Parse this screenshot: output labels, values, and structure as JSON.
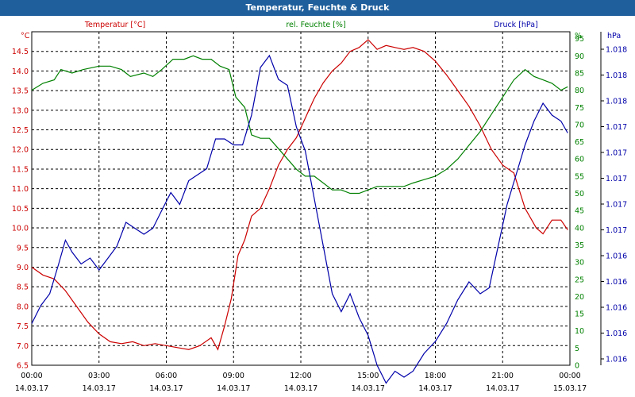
{
  "window": {
    "title": "Temperatur, Feuchte & Druck"
  },
  "chart_data": {
    "type": "line",
    "title": "Temperatur, Feuchte & Druck",
    "grid": true,
    "x_ticks": [
      {
        "time": "00:00",
        "date": "14.03.17"
      },
      {
        "time": "03:00",
        "date": "14.03.17"
      },
      {
        "time": "06:00",
        "date": "14.03.17"
      },
      {
        "time": "09:00",
        "date": "14.03.17"
      },
      {
        "time": "12:00",
        "date": "14.03.17"
      },
      {
        "time": "15:00",
        "date": "14.03.17"
      },
      {
        "time": "18:00",
        "date": "14.03.17"
      },
      {
        "time": "21:00",
        "date": "14.03.17"
      },
      {
        "time": "00:00",
        "date": "15.03.17"
      }
    ],
    "x_range_hours": [
      0,
      24
    ],
    "axes": {
      "temperature": {
        "label": "Temperatur [°C]",
        "unit": "°C",
        "color": "#cc0000",
        "range": [
          6.5,
          15.0
        ],
        "ticks": [
          "14.5",
          "14.0",
          "13.5",
          "13.0",
          "12.5",
          "12.0",
          "11.5",
          "11.0",
          "10.5",
          "10.0",
          "9.5",
          "9.0",
          "8.5",
          "8.0",
          "7.5",
          "7.0",
          "6.5"
        ]
      },
      "humidity": {
        "label": "rel. Feuchte [%]",
        "unit": "%",
        "color": "#008000",
        "range": [
          0,
          97
        ],
        "ticks": [
          "95",
          "90",
          "85",
          "80",
          "75",
          "70",
          "65",
          "60",
          "55",
          "50",
          "45",
          "40",
          "35",
          "30",
          "25",
          "20",
          "15",
          "10",
          "5",
          "0"
        ]
      },
      "pressure": {
        "label": "Druck [hPa]",
        "unit": "hPa",
        "color": "#0000aa",
        "range": [
          1015.6,
          1018.4
        ],
        "ticks": [
          "1.018",
          "1.018",
          "1.018",
          "1.017",
          "1.017",
          "1.017",
          "1.017",
          "1.017",
          "1.016",
          "1.016",
          "1.016",
          "1.016",
          "1.016"
        ]
      }
    },
    "series": [
      {
        "name": "Temperatur [°C]",
        "axis": "temperature",
        "color": "#cc0000",
        "points": [
          [
            0,
            9.0
          ],
          [
            0.5,
            8.8
          ],
          [
            1,
            8.7
          ],
          [
            1.5,
            8.4
          ],
          [
            2,
            8.0
          ],
          [
            2.5,
            7.6
          ],
          [
            3,
            7.3
          ],
          [
            3.5,
            7.1
          ],
          [
            4,
            7.05
          ],
          [
            4.5,
            7.1
          ],
          [
            5,
            7.0
          ],
          [
            5.5,
            7.05
          ],
          [
            6,
            7.0
          ],
          [
            6.5,
            6.95
          ],
          [
            7,
            6.9
          ],
          [
            7.5,
            7.0
          ],
          [
            8,
            7.2
          ],
          [
            8.3,
            6.9
          ],
          [
            8.6,
            7.5
          ],
          [
            8.9,
            8.2
          ],
          [
            9.2,
            9.3
          ],
          [
            9.5,
            9.7
          ],
          [
            9.8,
            10.3
          ],
          [
            10.2,
            10.5
          ],
          [
            10.6,
            11.0
          ],
          [
            11,
            11.6
          ],
          [
            11.4,
            12.0
          ],
          [
            11.8,
            12.3
          ],
          [
            12.2,
            12.8
          ],
          [
            12.6,
            13.3
          ],
          [
            13,
            13.7
          ],
          [
            13.4,
            14.0
          ],
          [
            13.8,
            14.2
          ],
          [
            14.2,
            14.5
          ],
          [
            14.6,
            14.6
          ],
          [
            15,
            14.8
          ],
          [
            15.4,
            14.55
          ],
          [
            15.8,
            14.65
          ],
          [
            16.2,
            14.6
          ],
          [
            16.6,
            14.55
          ],
          [
            17,
            14.6
          ],
          [
            17.5,
            14.5
          ],
          [
            18,
            14.25
          ],
          [
            18.5,
            13.9
          ],
          [
            19,
            13.5
          ],
          [
            19.5,
            13.1
          ],
          [
            20,
            12.6
          ],
          [
            20.5,
            12.0
          ],
          [
            21,
            11.6
          ],
          [
            21.5,
            11.4
          ],
          [
            22,
            10.5
          ],
          [
            22.5,
            10.0
          ],
          [
            22.8,
            9.85
          ],
          [
            23.2,
            10.2
          ],
          [
            23.6,
            10.2
          ],
          [
            23.9,
            9.95
          ]
        ]
      },
      {
        "name": "rel. Feuchte [%]",
        "axis": "humidity",
        "color": "#008000",
        "points": [
          [
            0,
            80
          ],
          [
            0.5,
            82
          ],
          [
            1,
            83
          ],
          [
            1.3,
            86
          ],
          [
            1.8,
            85
          ],
          [
            2.3,
            86
          ],
          [
            3,
            87
          ],
          [
            3.5,
            87
          ],
          [
            4,
            86
          ],
          [
            4.4,
            84
          ],
          [
            5,
            85
          ],
          [
            5.4,
            84
          ],
          [
            5.8,
            86
          ],
          [
            6.3,
            89
          ],
          [
            6.8,
            89
          ],
          [
            7.2,
            90
          ],
          [
            7.6,
            89
          ],
          [
            8,
            89
          ],
          [
            8.4,
            87
          ],
          [
            8.8,
            86
          ],
          [
            9.1,
            78
          ],
          [
            9.5,
            75
          ],
          [
            9.8,
            67
          ],
          [
            10.2,
            66
          ],
          [
            10.6,
            66
          ],
          [
            11,
            63
          ],
          [
            11.4,
            60
          ],
          [
            11.8,
            57
          ],
          [
            12.2,
            55
          ],
          [
            12.6,
            55
          ],
          [
            13,
            53
          ],
          [
            13.4,
            51
          ],
          [
            13.8,
            51
          ],
          [
            14.2,
            50
          ],
          [
            14.6,
            50
          ],
          [
            15,
            51
          ],
          [
            15.4,
            52
          ],
          [
            16,
            52
          ],
          [
            16.6,
            52
          ],
          [
            17,
            53
          ],
          [
            17.5,
            54
          ],
          [
            18,
            55
          ],
          [
            18.5,
            57
          ],
          [
            19,
            60
          ],
          [
            19.5,
            64
          ],
          [
            20,
            68
          ],
          [
            20.5,
            73
          ],
          [
            21,
            78
          ],
          [
            21.5,
            83
          ],
          [
            22,
            86
          ],
          [
            22.4,
            84
          ],
          [
            22.8,
            83
          ],
          [
            23.2,
            82
          ],
          [
            23.6,
            80
          ],
          [
            23.9,
            81
          ]
        ]
      },
      {
        "name": "Druck [hPa]",
        "axis": "pressure",
        "color": "#0000aa",
        "points": [
          [
            0,
            1015.95
          ],
          [
            0.4,
            1016.1
          ],
          [
            0.8,
            1016.2
          ],
          [
            1.2,
            1016.45
          ],
          [
            1.5,
            1016.65
          ],
          [
            1.8,
            1016.55
          ],
          [
            2.2,
            1016.45
          ],
          [
            2.6,
            1016.5
          ],
          [
            3,
            1016.4
          ],
          [
            3.4,
            1016.5
          ],
          [
            3.8,
            1016.6
          ],
          [
            4.2,
            1016.8
          ],
          [
            4.6,
            1016.75
          ],
          [
            5,
            1016.7
          ],
          [
            5.4,
            1016.75
          ],
          [
            5.8,
            1016.9
          ],
          [
            6.2,
            1017.05
          ],
          [
            6.6,
            1016.95
          ],
          [
            7,
            1017.15
          ],
          [
            7.4,
            1017.2
          ],
          [
            7.8,
            1017.25
          ],
          [
            8.2,
            1017.5
          ],
          [
            8.6,
            1017.5
          ],
          [
            9,
            1017.45
          ],
          [
            9.4,
            1017.45
          ],
          [
            9.8,
            1017.7
          ],
          [
            10.2,
            1018.1
          ],
          [
            10.6,
            1018.2
          ],
          [
            11,
            1018.0
          ],
          [
            11.4,
            1017.95
          ],
          [
            11.8,
            1017.6
          ],
          [
            12.2,
            1017.4
          ],
          [
            12.6,
            1017.0
          ],
          [
            13,
            1016.6
          ],
          [
            13.4,
            1016.2
          ],
          [
            13.8,
            1016.05
          ],
          [
            14.2,
            1016.2
          ],
          [
            14.6,
            1016.0
          ],
          [
            15,
            1015.85
          ],
          [
            15.4,
            1015.6
          ],
          [
            15.8,
            1015.45
          ],
          [
            16.2,
            1015.55
          ],
          [
            16.6,
            1015.5
          ],
          [
            17,
            1015.55
          ],
          [
            17.5,
            1015.7
          ],
          [
            18,
            1015.8
          ],
          [
            18.5,
            1015.95
          ],
          [
            19,
            1016.15
          ],
          [
            19.5,
            1016.3
          ],
          [
            20,
            1016.2
          ],
          [
            20.4,
            1016.25
          ],
          [
            20.8,
            1016.6
          ],
          [
            21.2,
            1016.95
          ],
          [
            21.6,
            1017.2
          ],
          [
            22,
            1017.45
          ],
          [
            22.4,
            1017.65
          ],
          [
            22.8,
            1017.8
          ],
          [
            23.2,
            1017.7
          ],
          [
            23.6,
            1017.65
          ],
          [
            23.9,
            1017.55
          ]
        ]
      }
    ]
  }
}
